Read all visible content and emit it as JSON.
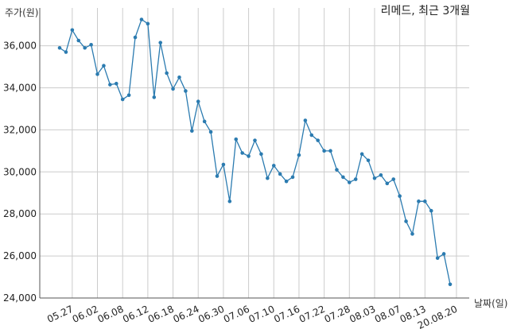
{
  "chart_data": {
    "type": "line",
    "title": "리메드, 최근 3개월",
    "xlabel": "날짜(일)",
    "ylabel": "주가(원)",
    "ylim": [
      24000,
      37800
    ],
    "yticks": [
      24000,
      26000,
      28000,
      30000,
      32000,
      34000,
      36000
    ],
    "ytick_labels": [
      "24,000",
      "26,000",
      "28,000",
      "30,000",
      "32,000",
      "34,000",
      "36,000"
    ],
    "xtick_labels": [
      "05.27",
      "06.02",
      "06.08",
      "06.12",
      "06.18",
      "06.24",
      "06.30",
      "07.06",
      "07.10",
      "07.16",
      "07.22",
      "07.28",
      "08.03",
      "08.07",
      "08.13",
      "20.08.20"
    ],
    "xtick_index": [
      2,
      6,
      10,
      14,
      18,
      22,
      26,
      30,
      34,
      38,
      42,
      46,
      50,
      54,
      58,
      63
    ],
    "grid": true,
    "series": [
      {
        "color": "#2b7bb0",
        "values": [
          35900,
          35700,
          36750,
          36250,
          35900,
          36050,
          34650,
          35050,
          34150,
          34200,
          33450,
          33650,
          36400,
          37250,
          37050,
          33550,
          36150,
          34700,
          33950,
          34500,
          33850,
          31950,
          33350,
          32400,
          31900,
          29800,
          30350,
          28600,
          31550,
          30900,
          30750,
          31500,
          30850,
          29700,
          30300,
          29900,
          29550,
          29750,
          30800,
          32450,
          31750,
          31500,
          31000,
          31000,
          30100,
          29750,
          29500,
          29650,
          30850,
          30550,
          29700,
          29850,
          29450,
          29650,
          28850,
          27650,
          27050,
          28600,
          28600,
          28150,
          25900,
          26100,
          24650
        ]
      }
    ]
  }
}
